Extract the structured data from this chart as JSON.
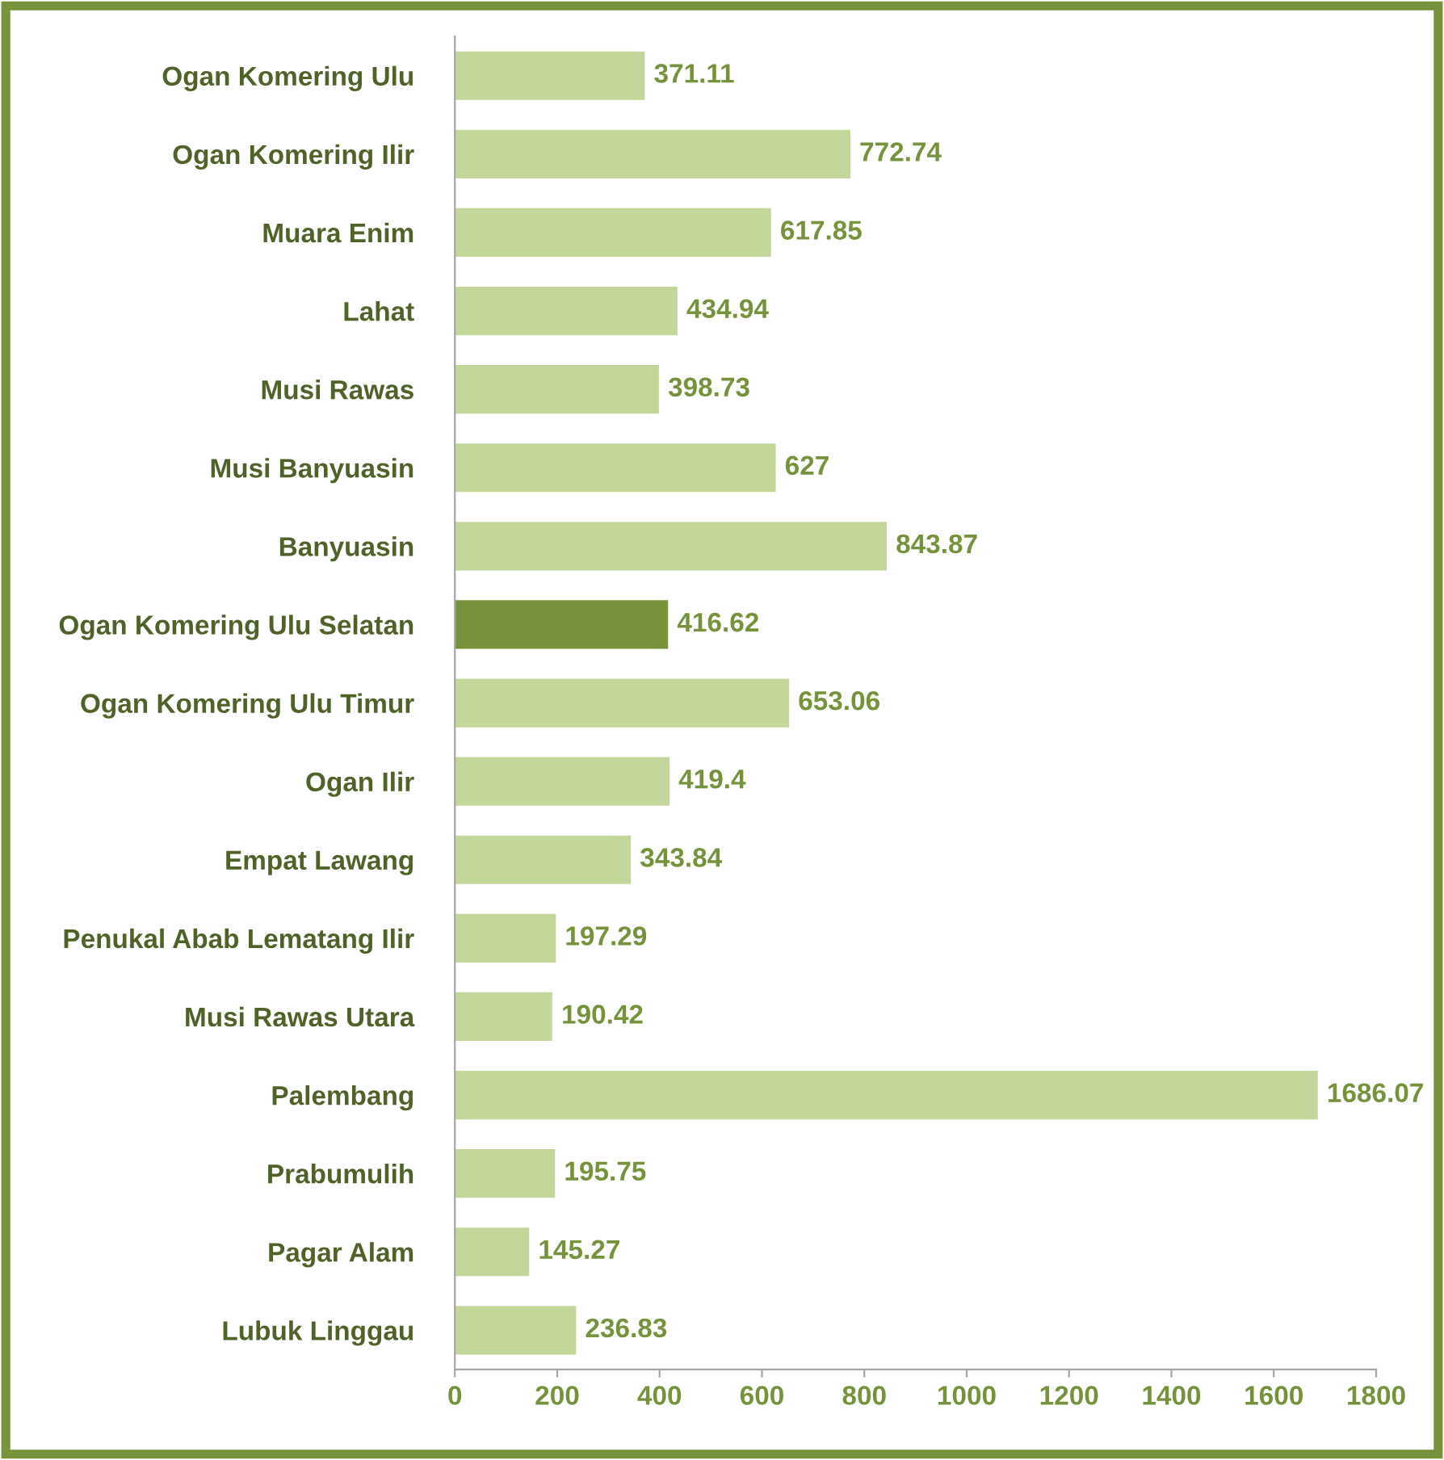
{
  "chart_data": {
    "type": "bar",
    "orientation": "horizontal",
    "categories": [
      "Ogan Komering Ulu",
      "Ogan Komering Ilir",
      "Muara Enim",
      "Lahat",
      "Musi Rawas",
      "Musi Banyuasin",
      "Banyuasin",
      "Ogan Komering Ulu Selatan",
      "Ogan Komering Ulu Timur",
      "Ogan Ilir",
      "Empat Lawang",
      "Penukal Abab Lematang Ilir",
      "Musi Rawas Utara",
      "Palembang",
      "Prabumulih",
      "Pagar Alam",
      "Lubuk Linggau"
    ],
    "values": [
      371.11,
      772.74,
      617.85,
      434.94,
      398.73,
      627,
      843.87,
      416.62,
      653.06,
      419.4,
      343.84,
      197.29,
      190.42,
      1686.07,
      195.75,
      145.27,
      236.83
    ],
    "colors": [
      "#c4d79b",
      "#c4d79b",
      "#c4d79b",
      "#c4d79b",
      "#c4d79b",
      "#c4d79b",
      "#c4d79b",
      "#76933c",
      "#c4d79b",
      "#c4d79b",
      "#c4d79b",
      "#c4d79b",
      "#c4d79b",
      "#c4d79b",
      "#c4d79b",
      "#c4d79b",
      "#c4d79b"
    ],
    "xlim": [
      0,
      1800
    ],
    "xticks": [
      0,
      200,
      400,
      600,
      800,
      1000,
      1200,
      1400,
      1600,
      1800
    ],
    "data_labels": true,
    "grid": false,
    "legend": false
  }
}
